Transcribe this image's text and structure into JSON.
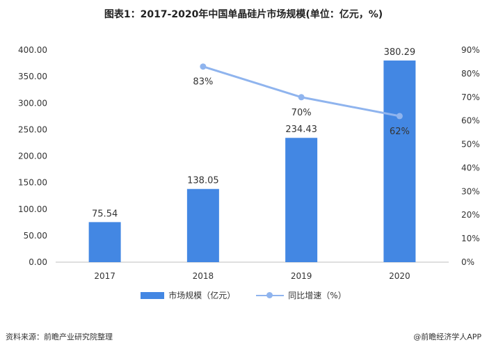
{
  "header": {
    "title": "图表1：2017-2020年中国单晶硅片市场规模(单位：亿元，%)"
  },
  "chart_data": {
    "type": "bar",
    "categories": [
      "2017",
      "2018",
      "2019",
      "2020"
    ],
    "series": [
      {
        "name": "市场规模（亿元）",
        "type": "bar",
        "axis": "left",
        "values": [
          75.54,
          138.05,
          234.43,
          380.29
        ],
        "labels": [
          "75.54",
          "138.05",
          "234.43",
          "380.29"
        ],
        "color": "#4387e3"
      },
      {
        "name": "同比增速（%）",
        "type": "line",
        "axis": "right",
        "values": [
          null,
          83,
          70,
          62
        ],
        "labels": [
          "",
          "83%",
          "70%",
          "62%"
        ],
        "color": "#8fb4ee"
      }
    ],
    "y_left": {
      "min": 0,
      "max": 400,
      "ticks": [
        "0.00",
        "50.00",
        "100.00",
        "150.00",
        "200.00",
        "250.00",
        "300.00",
        "350.00",
        "400.00"
      ]
    },
    "y_right": {
      "min": 0,
      "max": 90,
      "ticks": [
        "0%",
        "10%",
        "20%",
        "30%",
        "40%",
        "50%",
        "60%",
        "70%",
        "80%",
        "90%"
      ]
    },
    "legend_position": "bottom",
    "grid": false
  },
  "footer": {
    "source": "资料来源：前瞻产业研究院整理",
    "brand": "@前瞻经济学人APP"
  }
}
